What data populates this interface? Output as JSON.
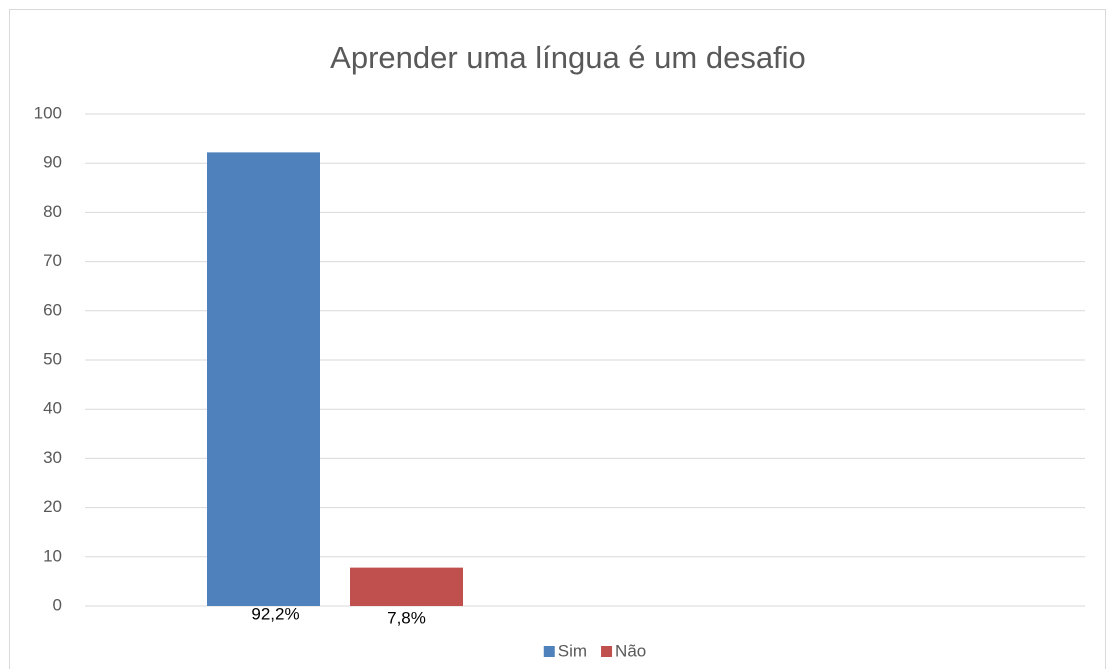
{
  "chart_data": {
    "type": "bar",
    "title": "Aprender uma língua é um desafio",
    "categories": [
      null,
      null
    ],
    "series": [
      {
        "name": "Sim",
        "color": "#4f81bd",
        "values": [
          92.2,
          null
        ],
        "value_labels": [
          "92,2%",
          null
        ]
      },
      {
        "name": "Não",
        "color": "#c0504d",
        "values": [
          7.8,
          null
        ],
        "value_labels": [
          "7,8%",
          null
        ]
      }
    ],
    "ylim": [
      0,
      100
    ],
    "yticks": [
      0,
      10,
      20,
      30,
      40,
      50,
      60,
      70,
      80,
      90,
      100
    ],
    "grid": true,
    "legend": "bottom"
  }
}
